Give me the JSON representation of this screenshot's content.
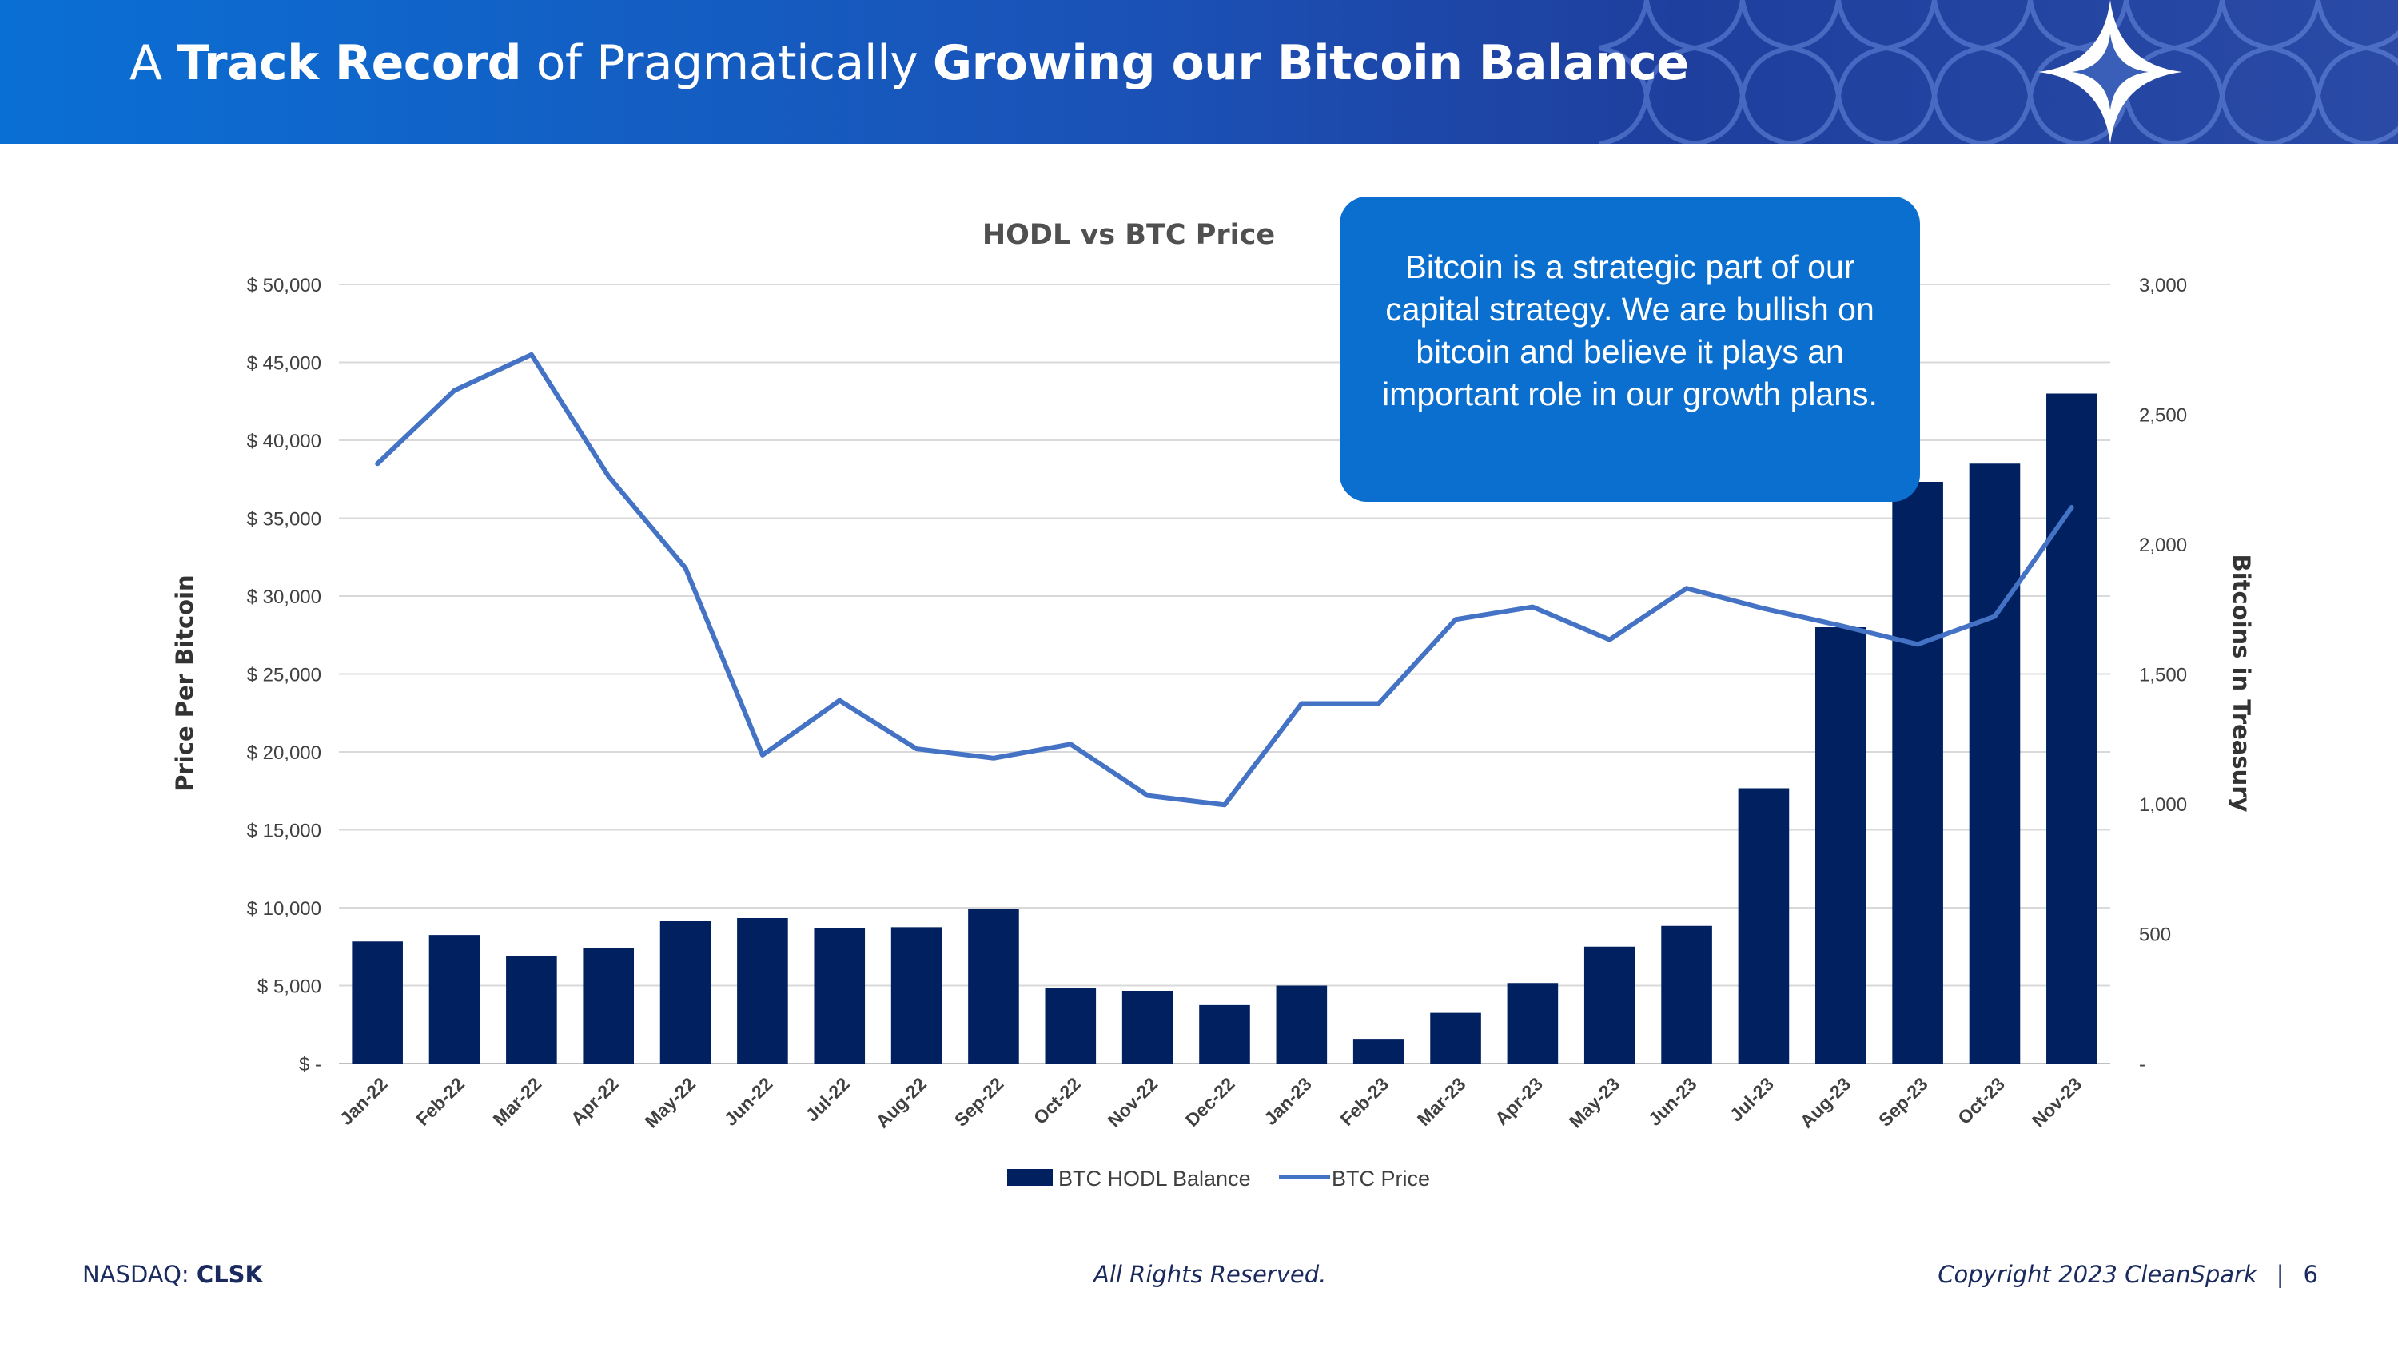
{
  "header": {
    "title_part1": "A ",
    "title_bold1": "Track Record",
    "title_part2": " of Pragmatically ",
    "title_bold2": "Growing our Bitcoin Balance"
  },
  "callout": {
    "text": "Bitcoin is a strategic part of our capital strategy. We are bullish on bitcoin and believe it plays an important role in our growth plans."
  },
  "footer": {
    "exchange_label": "NASDAQ: ",
    "ticker": "CLSK",
    "rights": "All Rights Reserved.",
    "copyright": "Copyright 2023 CleanSpark",
    "separator": "|",
    "page_number": "6"
  },
  "colors": {
    "bar": "#002060",
    "line": "#4472c4",
    "header_start": "#0a6fd4",
    "header_end": "#2a4aa6",
    "callout": "#0b6fcf"
  },
  "chart_data": {
    "type": "bar+line",
    "title": "HODL vs BTC Price",
    "categories": [
      "Jan-22",
      "Feb-22",
      "Mar-22",
      "Apr-22",
      "May-22",
      "Jun-22",
      "Jul-22",
      "Aug-22",
      "Sep-22",
      "Oct-22",
      "Nov-22",
      "Dec-22",
      "Jan-23",
      "Feb-23",
      "Mar-23",
      "Apr-23",
      "May-23",
      "Jun-23",
      "Jul-23",
      "Aug-23",
      "Sep-23",
      "Oct-23",
      "Nov-23"
    ],
    "series": [
      {
        "name": "BTC HODL Balance",
        "type": "bar",
        "axis": "right",
        "values": [
          470,
          495,
          415,
          445,
          550,
          560,
          520,
          525,
          595,
          290,
          280,
          225,
          300,
          95,
          195,
          310,
          450,
          530,
          1060,
          1680,
          2240,
          2310,
          2580
        ]
      },
      {
        "name": "BTC Price",
        "type": "line",
        "axis": "left",
        "values": [
          38500,
          43200,
          45500,
          37700,
          31800,
          19800,
          23300,
          20200,
          19600,
          20500,
          17200,
          16600,
          23100,
          23100,
          28500,
          29300,
          27200,
          30500,
          29200,
          28100,
          26900,
          28700,
          35700
        ]
      }
    ],
    "y_left": {
      "label": "Price Per Bitcoin",
      "range": [
        0,
        50000
      ],
      "ticks": [
        {
          "value": 50000,
          "label": "$ 50,000"
        },
        {
          "value": 45000,
          "label": "$ 45,000"
        },
        {
          "value": 40000,
          "label": "$ 40,000"
        },
        {
          "value": 35000,
          "label": "$ 35,000"
        },
        {
          "value": 30000,
          "label": "$ 30,000"
        },
        {
          "value": 25000,
          "label": "$ 25,000"
        },
        {
          "value": 20000,
          "label": "$ 20,000"
        },
        {
          "value": 15000,
          "label": "$ 15,000"
        },
        {
          "value": 10000,
          "label": "$ 10,000"
        },
        {
          "value": 5000,
          "label": "$ 5,000"
        },
        {
          "value": 0,
          "label": "$ -"
        }
      ]
    },
    "y_right": {
      "label": "Bitcoins in Treasury",
      "range": [
        0,
        3000
      ],
      "ticks": [
        {
          "value": 3000,
          "label": "3,000"
        },
        {
          "value": 2500,
          "label": "2,500"
        },
        {
          "value": 2000,
          "label": "2,000"
        },
        {
          "value": 1500,
          "label": "1,500"
        },
        {
          "value": 1000,
          "label": "1,000"
        },
        {
          "value": 500,
          "label": "500"
        },
        {
          "value": 0,
          "label": "-"
        }
      ]
    },
    "grid": true,
    "legend": "bottom"
  }
}
